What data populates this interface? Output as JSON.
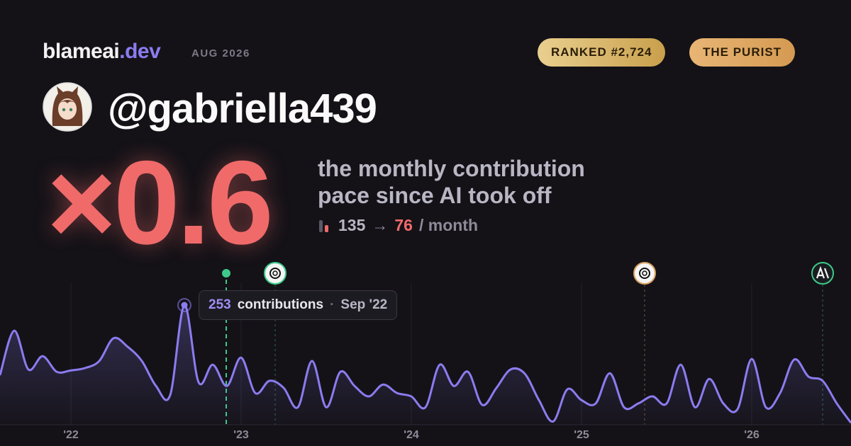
{
  "header": {
    "brand": "blameai",
    "brand_tld": ".dev",
    "date": "AUG 2026",
    "rank": "RANKED #2,724",
    "badge": "THE PURIST"
  },
  "profile": {
    "handle": "@gabriella439"
  },
  "stat": {
    "multiplier": "×0.6",
    "line1": "the monthly contribution",
    "line2": "pace since AI took off",
    "before": 135,
    "arrow": "→",
    "after": 76,
    "unit": "/ month"
  },
  "tooltip": {
    "label": "contributions",
    "sep": "·",
    "date": "Sep '22"
  },
  "chart_data": {
    "type": "line",
    "color": "#8b7cf0",
    "categories": [
      null,
      null,
      null,
      null,
      null,
      "'22",
      null,
      null,
      null,
      null,
      null,
      null,
      null,
      null,
      null,
      null,
      null,
      "'23",
      null,
      null,
      null,
      null,
      null,
      null,
      null,
      null,
      null,
      null,
      null,
      "'24",
      null,
      null,
      null,
      null,
      null,
      null,
      null,
      null,
      null,
      null,
      null,
      "'25",
      null,
      null,
      null,
      null,
      null,
      null,
      null,
      null,
      null,
      null,
      null,
      "'26",
      null,
      null,
      null,
      null,
      null,
      null,
      null
    ],
    "values": [
      105,
      199,
      117,
      145,
      112,
      115,
      120,
      135,
      183,
      165,
      135,
      82,
      63,
      253,
      90,
      127,
      82,
      142,
      67,
      93,
      78,
      37,
      135,
      37,
      112,
      82,
      60,
      85,
      67,
      60,
      37,
      127,
      82,
      112,
      42,
      78,
      117,
      108,
      52,
      7,
      75,
      52,
      45,
      109,
      37,
      45,
      60,
      45,
      127,
      37,
      97,
      45,
      33,
      139,
      37,
      67,
      138,
      102,
      93,
      45,
      4
    ],
    "ylim": [
      0,
      310
    ]
  }
}
